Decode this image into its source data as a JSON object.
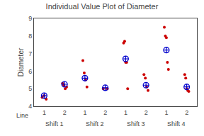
{
  "chart_data": {
    "type": "individual_value",
    "title": "Individual Value Plot of Diameter",
    "ylabel": "Diameter",
    "xlabel": "Line",
    "groups": [
      "Shift 1",
      "Shift 2",
      "Shift 3",
      "Shift 4"
    ],
    "categories": [
      "1",
      "2",
      "1",
      "2",
      "1",
      "2",
      "1",
      "2"
    ],
    "series": [
      {
        "color": "#cc0000",
        "marker": "dot",
        "values": [
          [
            4.5,
            4.6,
            4.4
          ],
          [
            5.3,
            5.2,
            5.0,
            5.1
          ],
          [
            6.6,
            5.9,
            5.5,
            5.1
          ],
          [
            5.0,
            5.0
          ],
          [
            7.6,
            7.7,
            6.5,
            6.5,
            5.0
          ],
          [
            5.8,
            5.6,
            5.1,
            4.9
          ],
          [
            8.5,
            8.0,
            7.9,
            6.5,
            6.1
          ],
          [
            5.8,
            5.6,
            5.0,
            4.9,
            4.85
          ]
        ]
      },
      {
        "color": "#0000cc",
        "marker": "circle-cross",
        "values": [
          [
            4.6
          ],
          [
            5.25
          ],
          [
            5.6
          ],
          [
            5.05
          ],
          [
            6.7
          ],
          [
            5.2
          ],
          [
            7.2
          ],
          [
            5.1
          ]
        ]
      }
    ],
    "ylim": [
      4,
      9
    ],
    "yticks": [
      4,
      5,
      6,
      7,
      8,
      9
    ],
    "grid": false
  }
}
